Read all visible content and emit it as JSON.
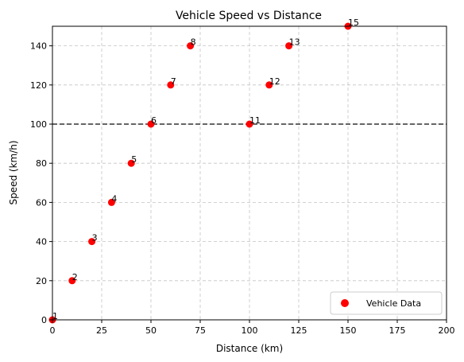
{
  "chart_data": {
    "type": "scatter",
    "title": "Vehicle Speed vs Distance",
    "xlabel": "Distance (km)",
    "ylabel": "Speed (km/h)",
    "xlim": [
      0,
      200
    ],
    "ylim": [
      0,
      150
    ],
    "xticks": [
      0,
      25,
      50,
      75,
      100,
      125,
      150,
      175,
      200
    ],
    "yticks": [
      0,
      20,
      40,
      60,
      80,
      100,
      120,
      140
    ],
    "grid": true,
    "legend_position": "lower-right",
    "series": [
      {
        "name": "Vehicle Data",
        "color": "#ff0000",
        "points": [
          {
            "label": "1",
            "x": 0,
            "y": 0
          },
          {
            "label": "2",
            "x": 10,
            "y": 20
          },
          {
            "label": "3",
            "x": 20,
            "y": 40
          },
          {
            "label": "4",
            "x": 30,
            "y": 60
          },
          {
            "label": "5",
            "x": 40,
            "y": 80
          },
          {
            "label": "6",
            "x": 50,
            "y": 100
          },
          {
            "label": "7",
            "x": 60,
            "y": 120
          },
          {
            "label": "8",
            "x": 70,
            "y": 140
          },
          {
            "label": "11",
            "x": 100,
            "y": 100
          },
          {
            "label": "12",
            "x": 110,
            "y": 120
          },
          {
            "label": "13",
            "x": 120,
            "y": 140
          },
          {
            "label": "15",
            "x": 150,
            "y": 150
          }
        ]
      }
    ],
    "reference_line": {
      "y": 100,
      "style": "dashed",
      "color": "#333333"
    }
  }
}
